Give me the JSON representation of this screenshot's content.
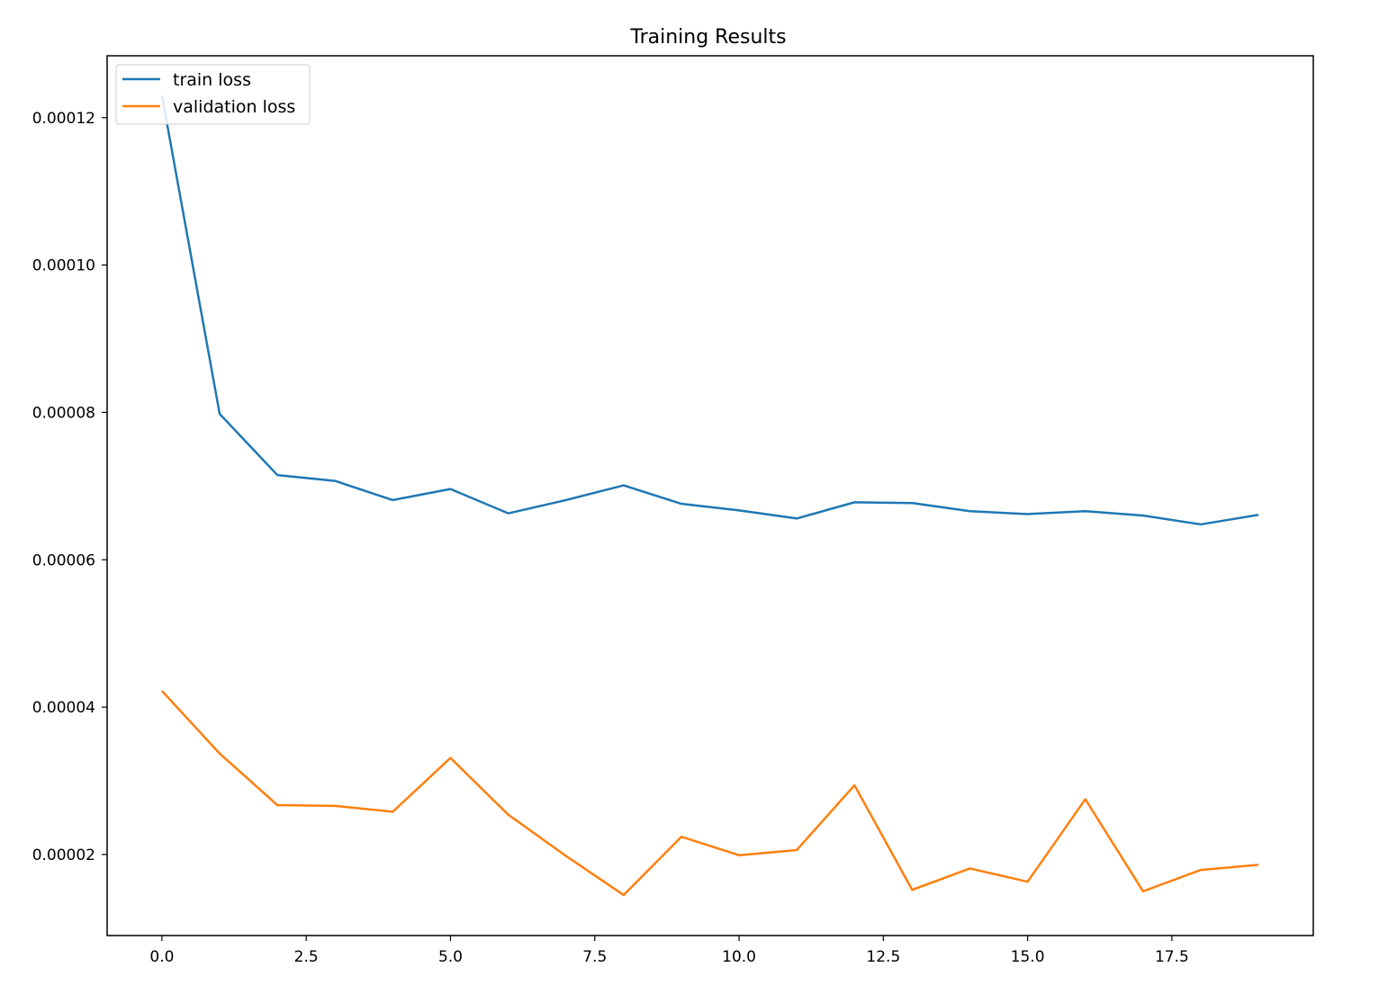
{
  "chart_data": {
    "type": "line",
    "title": "Training Results",
    "xlabel": "",
    "ylabel": "",
    "x": [
      0,
      1,
      2,
      3,
      4,
      5,
      6,
      7,
      8,
      9,
      10,
      11,
      12,
      13,
      14,
      15,
      16,
      17,
      18,
      19
    ],
    "xlim": [
      -0.95,
      19.95
    ],
    "ylim": [
      9e-06,
      0.0001284
    ],
    "xticks": [
      0.0,
      2.5,
      5.0,
      7.5,
      10.0,
      12.5,
      15.0,
      17.5
    ],
    "xtick_labels": [
      "0.0",
      "2.5",
      "5.0",
      "7.5",
      "10.0",
      "12.5",
      "15.0",
      "17.5"
    ],
    "yticks": [
      2e-05,
      4e-05,
      6e-05,
      8e-05,
      0.0001,
      0.00012
    ],
    "ytick_labels": [
      "0.00002",
      "0.00004",
      "0.00006",
      "0.00008",
      "0.00010",
      "0.00012"
    ],
    "grid": false,
    "legend_position": "top-left",
    "series": [
      {
        "name": "train loss",
        "color": "#1f77b4",
        "values": [
          0.000123,
          7.98e-05,
          7.15e-05,
          7.07e-05,
          6.81e-05,
          6.96e-05,
          6.63e-05,
          6.81e-05,
          7.01e-05,
          6.76e-05,
          6.67e-05,
          6.56e-05,
          6.78e-05,
          6.77e-05,
          6.66e-05,
          6.62e-05,
          6.66e-05,
          6.6e-05,
          6.48e-05,
          6.61e-05
        ]
      },
      {
        "name": "validation loss",
        "color": "#ff7f0e",
        "values": [
          4.22e-05,
          3.37e-05,
          2.67e-05,
          2.66e-05,
          2.58e-05,
          3.31e-05,
          2.54e-05,
          1.98e-05,
          1.45e-05,
          2.24e-05,
          1.99e-05,
          2.06e-05,
          2.94e-05,
          1.52e-05,
          1.81e-05,
          1.63e-05,
          2.75e-05,
          1.5e-05,
          1.79e-05,
          1.86e-05
        ]
      }
    ]
  }
}
